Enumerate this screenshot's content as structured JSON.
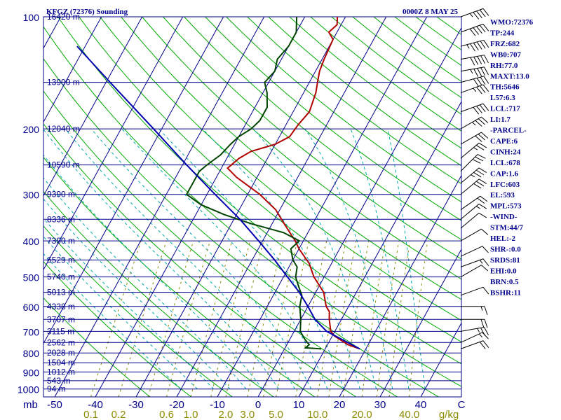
{
  "header": {
    "station": "KFGZ (72376) Sounding",
    "time": "0000Z  8 MAY 25"
  },
  "indices": [
    "WMO:72376",
    "TP:244",
    "FRZ:682",
    "WB0:707",
    "RH:77.0",
    "MAXT:13.0",
    "TH:5646",
    "L57:6.3",
    "LCL:717",
    "LI:1.7",
    "-PARCEL-",
    "CAPE:6",
    "CINH:24",
    "LCL:678",
    "CAP:1.6",
    "LFC:603",
    "EL:593",
    "MPL:573",
    "-WIND-",
    "STM:44/7",
    "HEL:-2",
    "SHR-:0.0",
    "SRDS:81",
    "EHI:0.0",
    "BRN:0.5",
    "BSHR:11"
  ],
  "colors": {
    "isobar": "#00008b",
    "isotherm": "#00008b",
    "dry_adiabat": "#00aa00",
    "moist_adiabat": "#00aaaa",
    "mixing_ratio": "#8b8b00",
    "temperature": "#b00000",
    "dewpoint": "#004400",
    "parcel": "#0000b0",
    "wind": "#000000"
  },
  "chart_data": {
    "type": "line",
    "title": "KFGZ (72376) Sounding",
    "xlabel": "",
    "ylabel": "mb",
    "xlim": [
      -50,
      50
    ],
    "ylim": [
      1000,
      100
    ],
    "y_scale": "log",
    "grid": true,
    "pressure_ticks": [
      {
        "p": 100,
        "label": "100"
      },
      {
        "p": 200,
        "label": "200"
      },
      {
        "p": 300,
        "label": "300"
      },
      {
        "p": 400,
        "label": "400"
      },
      {
        "p": 500,
        "label": "500"
      },
      {
        "p": 600,
        "label": "600"
      },
      {
        "p": 700,
        "label": "700"
      },
      {
        "p": 800,
        "label": "800"
      },
      {
        "p": 900,
        "label": "900"
      },
      {
        "p": 1000,
        "label": "1000"
      }
    ],
    "pressure_unit_label": "mb",
    "temperature_ticks": [
      {
        "t": -50,
        "label": "-50"
      },
      {
        "t": -40,
        "label": "-40"
      },
      {
        "t": -30,
        "label": "-30"
      },
      {
        "t": -20,
        "label": "-20"
      },
      {
        "t": -10,
        "label": "-10"
      },
      {
        "t": 0,
        "label": "0"
      },
      {
        "t": 10,
        "label": "10"
      },
      {
        "t": 20,
        "label": "20"
      },
      {
        "t": 30,
        "label": "30"
      },
      {
        "t": 40,
        "label": "40"
      },
      {
        "t": 50,
        "label": "C"
      }
    ],
    "heights": [
      {
        "p": 100,
        "label": "16420 m"
      },
      {
        "p": 150,
        "label": "13900 m"
      },
      {
        "p": 200,
        "label": "12040 m"
      },
      {
        "p": 250,
        "label": "10590 m"
      },
      {
        "p": 300,
        "label": "9390 m"
      },
      {
        "p": 350,
        "label": "8336 m"
      },
      {
        "p": 400,
        "label": "7390 m"
      },
      {
        "p": 450,
        "label": "6529 m"
      },
      {
        "p": 500,
        "label": "5740 m"
      },
      {
        "p": 550,
        "label": "5013 m"
      },
      {
        "p": 600,
        "label": "4338 m"
      },
      {
        "p": 650,
        "label": "3707 m"
      },
      {
        "p": 700,
        "label": "3115 m"
      },
      {
        "p": 750,
        "label": "2562 m"
      },
      {
        "p": 800,
        "label": "2028 m"
      },
      {
        "p": 850,
        "label": "1504 m"
      },
      {
        "p": 900,
        "label": "1012 m"
      },
      {
        "p": 950,
        "label": "543 m"
      },
      {
        "p": 1000,
        "label": "94 m"
      }
    ],
    "mixing_ratio_labels": [
      {
        "w": 0.1,
        "label": "0.1"
      },
      {
        "w": 0.2,
        "label": "0.2"
      },
      {
        "w": 0.6,
        "label": "0.6"
      },
      {
        "w": 1.0,
        "label": "1.0"
      },
      {
        "w": 2.0,
        "label": "2.0"
      },
      {
        "w": 3.0,
        "label": "3.0"
      },
      {
        "w": 5.0,
        "label": "5.0"
      },
      {
        "w": 10.0,
        "label": "10.0"
      },
      {
        "w": 20.0,
        "label": "20.0"
      },
      {
        "w": 40.0,
        "label": "40.0"
      }
    ],
    "mixing_ratio_unit": "g/kg",
    "series": [
      {
        "name": "Temperature",
        "points": [
          [
            780,
            18.5
          ],
          [
            760,
            15
          ],
          [
            720,
            10.5
          ],
          [
            700,
            9
          ],
          [
            650,
            7
          ],
          [
            620,
            6
          ],
          [
            600,
            4.5
          ],
          [
            580,
            3.5
          ],
          [
            550,
            2
          ],
          [
            500,
            -2.5
          ],
          [
            460,
            -5.5
          ],
          [
            420,
            -10
          ],
          [
            400,
            -12
          ],
          [
            360,
            -17
          ],
          [
            330,
            -21
          ],
          [
            300,
            -27
          ],
          [
            270,
            -35
          ],
          [
            255,
            -38.5
          ],
          [
            240,
            -37
          ],
          [
            230,
            -35
          ],
          [
            220,
            -30
          ],
          [
            210,
            -27.5
          ],
          [
            195,
            -27
          ],
          [
            180,
            -26
          ],
          [
            160,
            -27
          ],
          [
            150,
            -28
          ],
          [
            140,
            -29
          ],
          [
            130,
            -29.5
          ],
          [
            115,
            -30
          ],
          [
            110,
            -32
          ],
          [
            105,
            -31
          ],
          [
            100,
            -32
          ]
        ]
      },
      {
        "name": "Dewpoint",
        "points": [
          [
            780,
            9
          ],
          [
            775,
            5
          ],
          [
            760,
            5.5
          ],
          [
            740,
            4
          ],
          [
            700,
            1.5
          ],
          [
            650,
            0
          ],
          [
            600,
            -2
          ],
          [
            560,
            -3
          ],
          [
            530,
            -5
          ],
          [
            500,
            -7
          ],
          [
            470,
            -8
          ],
          [
            450,
            -10
          ],
          [
            420,
            -12
          ],
          [
            400,
            -11
          ],
          [
            380,
            -16
          ],
          [
            360,
            -25
          ],
          [
            340,
            -33
          ],
          [
            320,
            -40
          ],
          [
            300,
            -45
          ],
          [
            280,
            -45
          ],
          [
            260,
            -45
          ],
          [
            250,
            -44
          ],
          [
            235,
            -42
          ],
          [
            220,
            -41
          ],
          [
            210,
            -40
          ],
          [
            200,
            -38
          ],
          [
            190,
            -37
          ],
          [
            175,
            -37
          ],
          [
            160,
            -39
          ],
          [
            150,
            -41
          ],
          [
            140,
            -40
          ],
          [
            130,
            -41
          ],
          [
            120,
            -40
          ],
          [
            110,
            -40
          ],
          [
            100,
            -42
          ]
        ]
      },
      {
        "name": "Parcel",
        "points": [
          [
            780,
            18.5
          ],
          [
            700,
            8
          ],
          [
            650,
            3.5
          ],
          [
            600,
            0
          ],
          [
            550,
            -4
          ],
          [
            500,
            -9
          ],
          [
            450,
            -14.5
          ],
          [
            400,
            -21
          ],
          [
            350,
            -28.5
          ],
          [
            300,
            -38
          ],
          [
            250,
            -49
          ],
          [
            200,
            -62
          ],
          [
            150,
            -79
          ],
          [
            120,
            -92
          ]
        ]
      }
    ],
    "winds": [
      {
        "p": 780,
        "dir": 250,
        "spd": 20
      },
      {
        "p": 750,
        "dir": 245,
        "spd": 15
      },
      {
        "p": 700,
        "dir": 260,
        "spd": 25
      },
      {
        "p": 650,
        "dir": 270,
        "spd": 20
      },
      {
        "p": 600,
        "dir": 270,
        "spd": 15
      },
      {
        "p": 560,
        "dir": 250,
        "spd": 10
      },
      {
        "p": 500,
        "dir": 240,
        "spd": 10
      },
      {
        "p": 470,
        "dir": 250,
        "spd": 15
      },
      {
        "p": 440,
        "dir": 245,
        "spd": 10
      },
      {
        "p": 400,
        "dir": 240,
        "spd": 10
      },
      {
        "p": 370,
        "dir": 230,
        "spd": 10
      },
      {
        "p": 350,
        "dir": 230,
        "spd": 15
      },
      {
        "p": 330,
        "dir": 235,
        "spd": 20
      },
      {
        "p": 300,
        "dir": 230,
        "spd": 30
      },
      {
        "p": 280,
        "dir": 230,
        "spd": 35
      },
      {
        "p": 260,
        "dir": 225,
        "spd": 30
      },
      {
        "p": 240,
        "dir": 230,
        "spd": 25
      },
      {
        "p": 220,
        "dir": 240,
        "spd": 30
      },
      {
        "p": 200,
        "dir": 240,
        "spd": 35
      },
      {
        "p": 180,
        "dir": 250,
        "spd": 40
      },
      {
        "p": 160,
        "dir": 250,
        "spd": 35
      },
      {
        "p": 150,
        "dir": 255,
        "spd": 40
      },
      {
        "p": 140,
        "dir": 260,
        "spd": 45
      },
      {
        "p": 130,
        "dir": 260,
        "spd": 50
      },
      {
        "p": 120,
        "dir": 255,
        "spd": 55
      },
      {
        "p": 110,
        "dir": 250,
        "spd": 50
      },
      {
        "p": 100,
        "dir": 250,
        "spd": 45
      }
    ]
  }
}
